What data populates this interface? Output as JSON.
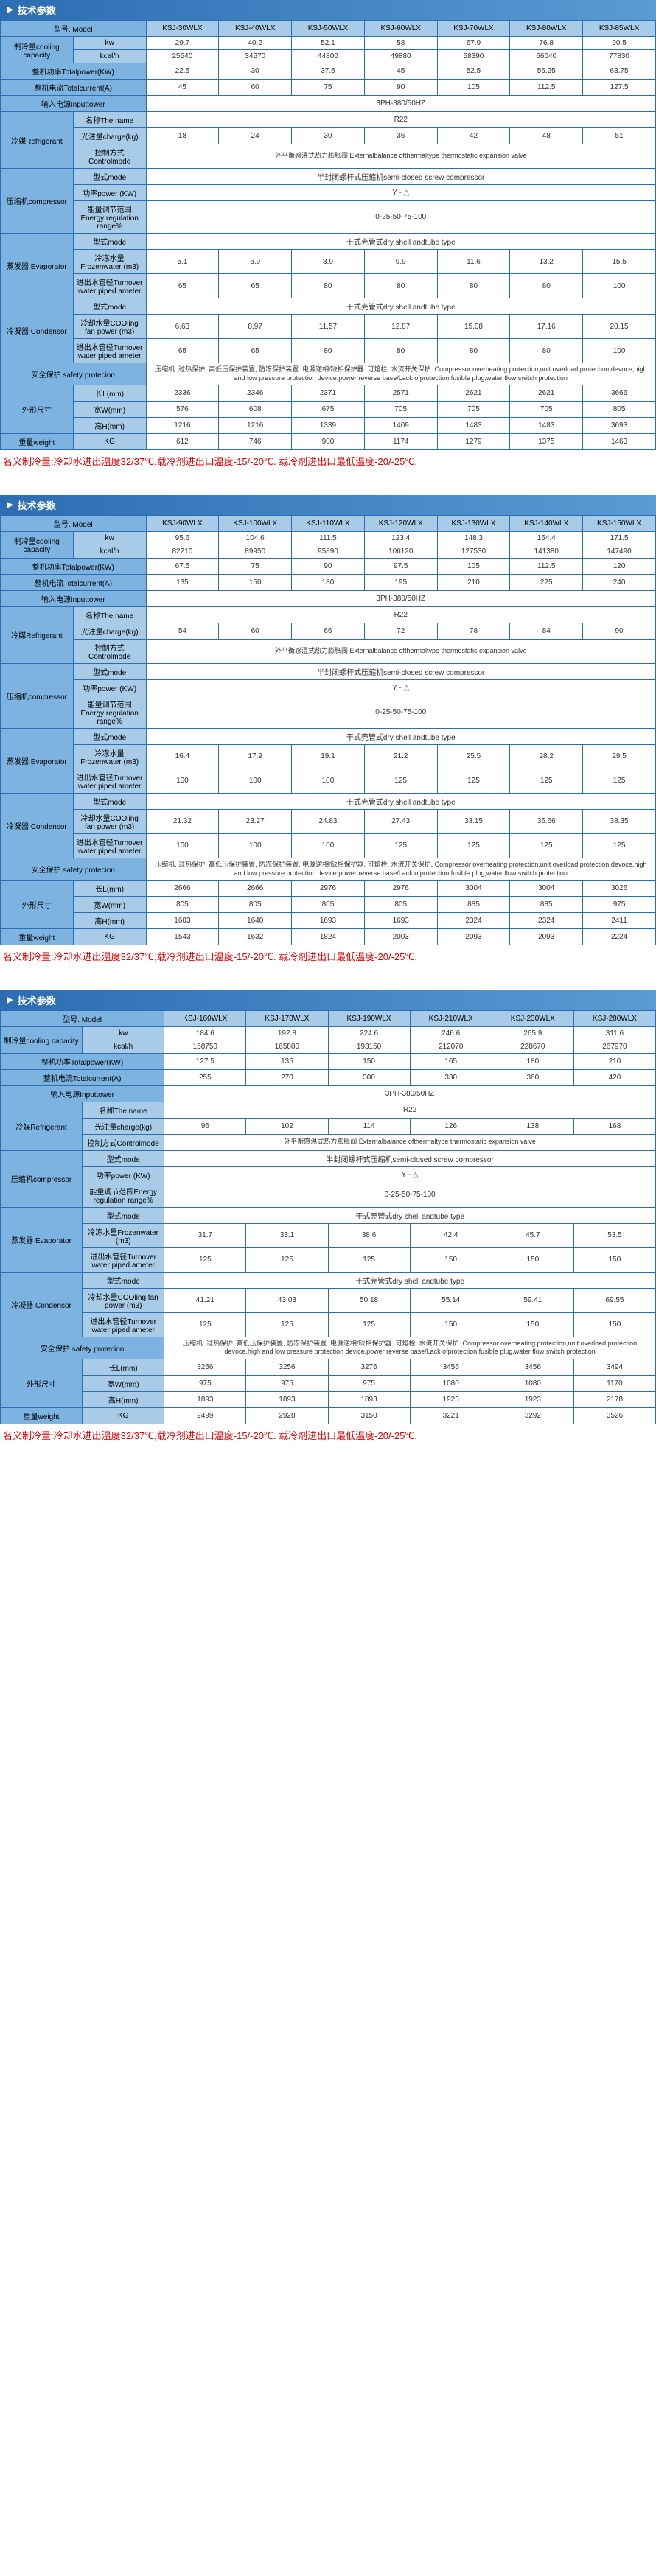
{
  "sectionTitle": "技术参数",
  "t1": {
    "models": [
      "KSJ-30WLX",
      "KSJ-40WLX",
      "KSJ-50WLX",
      "KSJ-60WLX",
      "KSJ-70WLX",
      "KSJ-80WLX",
      "KSJ-85WLX"
    ],
    "modelLabel": "型号. Model",
    "coolingLabel": "制冷量cooling capacity",
    "kwLabel": "kw",
    "kw": [
      "29.7",
      "40.2",
      "52.1",
      "58",
      "67.9",
      "76.8",
      "90.5"
    ],
    "kcalLabel": "kcal/h",
    "kcal": [
      "25540",
      "34570",
      "44800",
      "49880",
      "58390",
      "66040",
      "77830"
    ],
    "totalPowerLabel": "整机功率Totalpower(KW)",
    "totalPower": [
      "22.5",
      "30",
      "37.5",
      "45",
      "52.5",
      "56.25",
      "63.75"
    ],
    "totalCurrentLabel": "整机电流Totalcurrent(A)",
    "totalCurrent": [
      "45",
      "60",
      "75",
      "90",
      "105",
      "112.5",
      "127.5"
    ],
    "inputPowerLabel": "输入电源Inputtower",
    "inputPower": "3PH-380/50HZ",
    "refrigerantLabel": "冷媒Refrigerant",
    "nameLabel": "名称The name",
    "refrigerantName": "R22",
    "chargeLabel": "光注量charge(kg)",
    "charge": [
      "18",
      "24",
      "30",
      "36",
      "42",
      "48",
      "51"
    ],
    "controlModeLabel": "控制方式Controlmode",
    "controlMode": "外平衡感温式热力膨胀阀\nExternalbalance ofthermaltype thermostatic expansion valve",
    "compressorLabel": "压缩机compressor",
    "typeLabel": "型式mode",
    "compressorType": "半封闭螺杆式压缩机semi-closed screw compressor",
    "powerLabel": "功率power (KW)",
    "compressorPower": "Y - △",
    "energyLabel": "能量调节范围Energy regulation range%",
    "energyRange": "0-25-50-75-100",
    "evapLabel": "蒸发器\nEvaporator",
    "evapType": "干式壳管式dry shell andtube type",
    "frozenWaterLabel": "冷冻水量Frozenwater (m3)",
    "frozenWater": [
      "5.1",
      "6.9",
      "8.9",
      "9.9",
      "11.6",
      "13.2",
      "15.5"
    ],
    "pipeLabel": "进出水管径Turnover water piped ameter",
    "pipe": [
      "65",
      "65",
      "80",
      "80",
      "80",
      "80",
      "100"
    ],
    "condLabel": "冷凝器\nCondensor",
    "condType": "干式壳管式dry shell andtube type",
    "coolingFanLabel": "冷却水量COOling fan power (m3)",
    "coolingFan": [
      "6.63",
      "8.97",
      "11.57",
      "12.87",
      "15.08",
      "17.16",
      "20.15"
    ],
    "condPipe": [
      "65",
      "65",
      "80",
      "80",
      "80",
      "80",
      "100"
    ],
    "safetyLabel": "安全保护 safety protecion",
    "safetyText": "压缩机. 过热保护. 高低压保护装置, 防冻保护装置. 电源逆相/缺相保护器. 可熔栓. 水流开关保护.\nCompressor overheating protection,unit overload protection devoce,high and low pressure protection device,power reverse base/Lack ofprotection,fusible plug,water flow switch protection",
    "dimLabel": "外形尺寸",
    "lengthLabel": "长L(mm)",
    "length": [
      "2336",
      "2346",
      "2371",
      "2571",
      "2621",
      "2621",
      "3666"
    ],
    "widthLabel": "宽W(mm)",
    "width": [
      "576",
      "608",
      "675",
      "705",
      "705",
      "705",
      "805"
    ],
    "heightLabel": "高H(mm)",
    "height": [
      "1216",
      "1216",
      "1339",
      "1409",
      "1483",
      "1483",
      "3693"
    ],
    "weightLabel": "重量weight",
    "kgLabel": "KG",
    "weight": [
      "612",
      "746",
      "900",
      "1174",
      "1279",
      "1375",
      "1463"
    ],
    "note": "名义制冷量:冷却水进出温度32/37℃,载冷剂进出口温度-15/-20℃.\n载冷剂进出口最低温度-20/-25℃."
  },
  "t2": {
    "models": [
      "KSJ-90WLX",
      "KSJ-100WLX",
      "KSJ-110WLX",
      "KSJ-120WLX",
      "KSJ-130WLX",
      "KSJ-140WLX",
      "KSJ-150WLX"
    ],
    "kw": [
      "95.6",
      "104.6",
      "111.5",
      "123.4",
      "148.3",
      "164.4",
      "171.5"
    ],
    "kcal": [
      "82210",
      "89950",
      "95890",
      "106120",
      "127530",
      "141380",
      "147490"
    ],
    "totalPower": [
      "67.5",
      "75",
      "90",
      "97.5",
      "105",
      "112.5",
      "120"
    ],
    "totalCurrent": [
      "135",
      "150",
      "180",
      "195",
      "210",
      "225",
      "240"
    ],
    "charge": [
      "54",
      "60",
      "66",
      "72",
      "78",
      "84",
      "90"
    ],
    "frozenWater": [
      "16.4",
      "17.9",
      "19.1",
      "21.2",
      "25.5",
      "28.2",
      "29.5"
    ],
    "pipe": [
      "100",
      "100",
      "100",
      "125",
      "125",
      "125",
      "125"
    ],
    "coolingFan": [
      "21.32",
      "23.27",
      "24.83",
      "27.43",
      "33.15",
      "36.66",
      "38.35"
    ],
    "condPipe": [
      "100",
      "100",
      "100",
      "125",
      "125",
      "125",
      "125"
    ],
    "length": [
      "2666",
      "2666",
      "2976",
      "2976",
      "3004",
      "3004",
      "3026"
    ],
    "width": [
      "805",
      "805",
      "805",
      "805",
      "885",
      "885",
      "975"
    ],
    "height": [
      "1603",
      "1640",
      "1693",
      "1693",
      "2324",
      "2324",
      "2411"
    ],
    "weight": [
      "1543",
      "1632",
      "1824",
      "2003",
      "2093",
      "2093",
      "2224"
    ]
  },
  "t3": {
    "models": [
      "KSJ-160WLX",
      "KSJ-170WLX",
      "KSJ-190WLX",
      "KSJ-210WLX",
      "KSJ-230WLX",
      "KSJ-280WLX"
    ],
    "kw": [
      "184.6",
      "192.8",
      "224.6",
      "246.6",
      "265.9",
      "311.6"
    ],
    "kcal": [
      "158750",
      "165800",
      "193150",
      "212070",
      "228670",
      "267970"
    ],
    "totalPower": [
      "127.5",
      "135",
      "150",
      "165",
      "180",
      "210"
    ],
    "totalCurrent": [
      "255",
      "270",
      "300",
      "330",
      "360",
      "420"
    ],
    "charge": [
      "96",
      "102",
      "114",
      "126",
      "138",
      "168"
    ],
    "frozenWater": [
      "31.7",
      "33.1",
      "38.6",
      "42.4",
      "45.7",
      "53.5"
    ],
    "pipe": [
      "125",
      "125",
      "125",
      "150",
      "150",
      "150"
    ],
    "coolingFan": [
      "41.21",
      "43.03",
      "50.18",
      "55.14",
      "59.41",
      "69.55"
    ],
    "condPipe": [
      "125",
      "125",
      "125",
      "150",
      "150",
      "150"
    ],
    "length": [
      "3256",
      "3256",
      "3276",
      "3456",
      "3456",
      "3494"
    ],
    "width": [
      "975",
      "975",
      "975",
      "1080",
      "1080",
      "1170"
    ],
    "height": [
      "1893",
      "1893",
      "1893",
      "1923",
      "1923",
      "2178"
    ],
    "weight": [
      "2499",
      "2928",
      "3150",
      "3221",
      "3292",
      "3526"
    ]
  }
}
